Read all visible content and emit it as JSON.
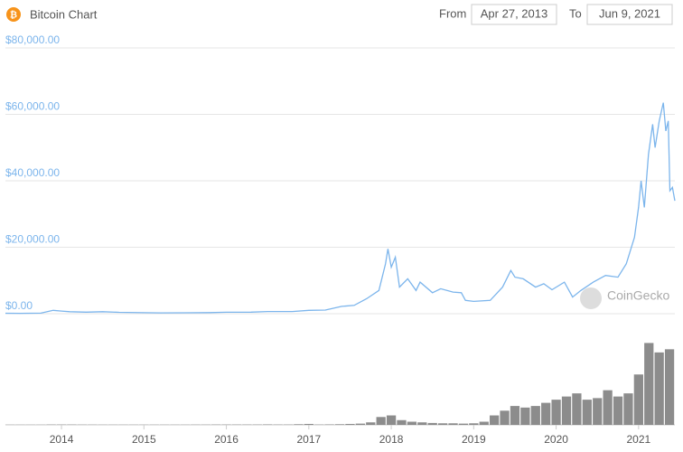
{
  "header": {
    "title": "Bitcoin Chart",
    "from_label": "From",
    "from_date": "Apr 27, 2013",
    "to_label": "To",
    "to_date": "Jun 9, 2021",
    "icon": "₿"
  },
  "watermark": "CoinGecko",
  "chart_data": [
    {
      "type": "line",
      "x": [
        2013.32,
        2013.5,
        2013.75,
        2013.9,
        2014.0,
        2014.1,
        2014.3,
        2014.5,
        2014.7,
        2015.0,
        2015.2,
        2015.5,
        2015.8,
        2016.0,
        2016.3,
        2016.5,
        2016.8,
        2017.0,
        2017.2,
        2017.4,
        2017.55,
        2017.7,
        2017.85,
        2017.93,
        2017.96,
        2018.0,
        2018.05,
        2018.1,
        2018.2,
        2018.3,
        2018.35,
        2018.5,
        2018.6,
        2018.75,
        2018.85,
        2018.9,
        2019.0,
        2019.2,
        2019.35,
        2019.45,
        2019.5,
        2019.6,
        2019.75,
        2019.85,
        2019.95,
        2020.1,
        2020.2,
        2020.3,
        2020.45,
        2020.6,
        2020.75,
        2020.85,
        2020.95,
        2021.0,
        2021.03,
        2021.07,
        2021.12,
        2021.17,
        2021.2,
        2021.25,
        2021.3,
        2021.33,
        2021.36,
        2021.38,
        2021.41,
        2021.44
      ],
      "series": [
        {
          "color": "#7cb5ec",
          "values": [
            130,
            100,
            150,
            1000,
            800,
            600,
            450,
            600,
            400,
            300,
            250,
            260,
            320,
            430,
            450,
            650,
            650,
            1000,
            1100,
            2200,
            2500,
            4500,
            7000,
            15000,
            19500,
            14000,
            17000,
            8000,
            10500,
            7000,
            9500,
            6300,
            7500,
            6500,
            6300,
            4000,
            3700,
            4000,
            8000,
            13000,
            11000,
            10500,
            8000,
            9000,
            7200,
            9500,
            5000,
            7000,
            9500,
            11500,
            11000,
            15000,
            23000,
            32000,
            40000,
            32000,
            48000,
            57000,
            50000,
            58000,
            63500,
            55000,
            58000,
            37000,
            38000,
            34000
          ]
        }
      ],
      "xlim": [
        2013.32,
        2021.44
      ],
      "xticks": [
        2014,
        2015,
        2016,
        2017,
        2018,
        2019,
        2020,
        2021
      ],
      "ylim": [
        0,
        80000
      ],
      "yticks": [
        {
          "value": 0,
          "label": "$0.00"
        },
        {
          "value": 20000,
          "label": "$20,000.00"
        },
        {
          "value": 40000,
          "label": "$40,000.00"
        },
        {
          "value": 60000,
          "label": "$60,000.00"
        },
        {
          "value": 80000,
          "label": "$80,000.00"
        }
      ],
      "grid": true
    },
    {
      "type": "bar",
      "color": "#8c8c8c",
      "x": [
        2013.375,
        2013.5,
        2013.625,
        2013.75,
        2013.875,
        2014.0,
        2014.125,
        2014.25,
        2014.375,
        2014.5,
        2014.625,
        2014.75,
        2014.875,
        2015.0,
        2015.125,
        2015.25,
        2015.375,
        2015.5,
        2015.625,
        2015.75,
        2015.875,
        2016.0,
        2016.125,
        2016.25,
        2016.375,
        2016.5,
        2016.625,
        2016.75,
        2016.875,
        2017.0,
        2017.125,
        2017.25,
        2017.375,
        2017.5,
        2017.625,
        2017.75,
        2017.875,
        2018.0,
        2018.125,
        2018.25,
        2018.375,
        2018.5,
        2018.625,
        2018.75,
        2018.875,
        2019.0,
        2019.125,
        2019.25,
        2019.375,
        2019.5,
        2019.625,
        2019.75,
        2019.875,
        2020.0,
        2020.125,
        2020.25,
        2020.375,
        2020.5,
        2020.625,
        2020.75,
        2020.875,
        2021.0,
        2021.125,
        2021.25,
        2021.375
      ],
      "values": [
        0.5,
        0.5,
        0.5,
        0.5,
        1,
        1,
        1,
        0.8,
        0.7,
        0.6,
        0.6,
        0.6,
        0.6,
        0.6,
        0.6,
        0.6,
        0.6,
        0.6,
        0.8,
        0.8,
        1,
        1,
        1,
        1,
        1,
        1.5,
        1,
        1,
        2,
        3,
        1,
        1.5,
        2,
        3,
        4,
        8,
        25,
        30,
        15,
        10,
        8,
        6,
        5,
        5,
        4,
        5,
        10,
        30,
        45,
        60,
        55,
        60,
        70,
        80,
        90,
        100,
        80,
        85,
        110,
        90,
        100,
        160,
        260,
        230,
        240
      ],
      "ylim": [
        0,
        330
      ]
    }
  ]
}
